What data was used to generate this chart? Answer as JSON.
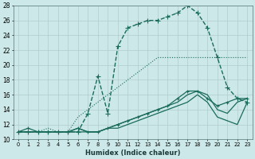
{
  "xlabel": "Humidex (Indice chaleur)",
  "xlim": [
    -0.5,
    23.5
  ],
  "ylim": [
    10,
    28
  ],
  "xticks": [
    0,
    1,
    2,
    3,
    4,
    5,
    6,
    7,
    8,
    9,
    10,
    11,
    12,
    13,
    14,
    15,
    16,
    17,
    18,
    19,
    20,
    21,
    22,
    23
  ],
  "yticks": [
    10,
    12,
    14,
    16,
    18,
    20,
    22,
    24,
    26,
    28
  ],
  "bg_color": "#cce8e8",
  "grid_color": "#b8d8d8",
  "line_color": "#1a6b5a",
  "series": [
    {
      "x": [
        0,
        1,
        2,
        3,
        4,
        5,
        6,
        7,
        8,
        9,
        10,
        11,
        12,
        13,
        14,
        15,
        16,
        17,
        18,
        19,
        20,
        21,
        22,
        23
      ],
      "y": [
        11,
        11,
        11,
        11,
        11,
        11,
        11,
        13.5,
        18.5,
        13.5,
        22.5,
        25,
        25.5,
        26,
        26,
        26.5,
        27,
        28,
        27,
        25,
        21,
        17,
        15.5,
        15
      ],
      "marker": "+",
      "markersize": 4,
      "linestyle": "--",
      "lw": 1.0
    },
    {
      "x": [
        0,
        1,
        2,
        3,
        4,
        5,
        6,
        7,
        8,
        9,
        10,
        11,
        12,
        13,
        14,
        15,
        16,
        17,
        18,
        19,
        20,
        21,
        22,
        23
      ],
      "y": [
        11,
        11,
        11,
        11.5,
        11,
        11,
        13,
        14,
        15,
        16,
        17,
        18,
        19,
        20,
        21,
        21,
        21,
        21,
        21,
        21,
        21,
        21,
        21,
        21
      ],
      "marker": null,
      "markersize": 0,
      "linestyle": ":",
      "lw": 0.8
    },
    {
      "x": [
        0,
        1,
        2,
        3,
        4,
        5,
        6,
        7,
        8,
        9,
        10,
        11,
        12,
        13,
        14,
        15,
        16,
        17,
        18,
        19,
        20,
        21,
        22,
        23
      ],
      "y": [
        11,
        11.5,
        11,
        11,
        11,
        11,
        11.5,
        11,
        11,
        11.5,
        12,
        12.5,
        13,
        13.5,
        14,
        14.5,
        15.5,
        16.5,
        16.5,
        15.5,
        14.5,
        15,
        15.5,
        15.5
      ],
      "marker": "+",
      "markersize": 3,
      "linestyle": "-",
      "lw": 0.9
    },
    {
      "x": [
        0,
        1,
        2,
        3,
        4,
        5,
        6,
        7,
        8,
        9,
        10,
        11,
        12,
        13,
        14,
        15,
        16,
        17,
        18,
        19,
        20,
        21,
        22,
        23
      ],
      "y": [
        11,
        11,
        11,
        11,
        11,
        11,
        11.5,
        11,
        11,
        11.5,
        11.5,
        12,
        12.5,
        13,
        13.5,
        14,
        14.5,
        15,
        16,
        15,
        13,
        12.5,
        12,
        15
      ],
      "marker": null,
      "markersize": 0,
      "linestyle": "-",
      "lw": 0.9
    },
    {
      "x": [
        0,
        1,
        2,
        3,
        4,
        5,
        6,
        7,
        8,
        9,
        10,
        11,
        12,
        13,
        14,
        15,
        16,
        17,
        18,
        19,
        20,
        21,
        22,
        23
      ],
      "y": [
        11,
        11,
        11,
        11,
        11,
        11,
        11,
        11,
        11,
        11.5,
        12,
        12.5,
        13,
        13.5,
        14,
        14.5,
        15,
        16,
        16.5,
        16,
        14,
        13.5,
        15,
        15.5
      ],
      "marker": null,
      "markersize": 0,
      "linestyle": "-",
      "lw": 0.9
    }
  ]
}
